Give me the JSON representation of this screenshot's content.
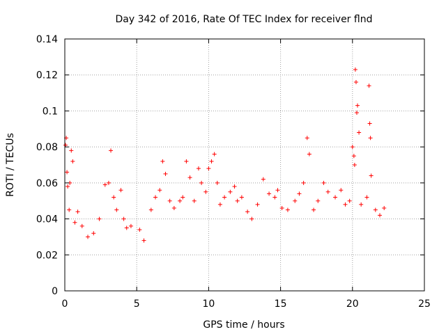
{
  "chart_data": {
    "type": "scatter",
    "title": "Day 342 of 2016, Rate Of TEC Index for receiver flnd",
    "xlabel": "GPS time / hours",
    "ylabel": "ROTI / TECUs",
    "xlim": [
      0,
      25
    ],
    "ylim": [
      0,
      0.14
    ],
    "xticks": [
      0,
      5,
      10,
      15,
      20,
      25
    ],
    "xtick_labels": [
      "0",
      "5",
      "10",
      "15",
      "20",
      "25"
    ],
    "yticks": [
      0,
      0.02,
      0.04,
      0.06,
      0.08,
      0.1,
      0.12,
      0.14
    ],
    "ytick_labels": [
      "0",
      "0.02",
      "0.04",
      "0.06",
      "0.08",
      "0.1",
      "0.12",
      "0.14"
    ],
    "grid": true,
    "marker": "plus",
    "series": [
      {
        "name": "ROTI",
        "color": "#ff0000",
        "points": [
          [
            0.05,
            0.081
          ],
          [
            0.1,
            0.085
          ],
          [
            0.15,
            0.066
          ],
          [
            0.2,
            0.058
          ],
          [
            0.3,
            0.045
          ],
          [
            0.35,
            0.06
          ],
          [
            0.45,
            0.078
          ],
          [
            0.55,
            0.072
          ],
          [
            0.7,
            0.038
          ],
          [
            0.9,
            0.044
          ],
          [
            1.2,
            0.036
          ],
          [
            1.6,
            0.03
          ],
          [
            2.0,
            0.032
          ],
          [
            2.4,
            0.04
          ],
          [
            2.8,
            0.059
          ],
          [
            3.05,
            0.06
          ],
          [
            3.2,
            0.078
          ],
          [
            3.4,
            0.052
          ],
          [
            3.6,
            0.045
          ],
          [
            3.9,
            0.056
          ],
          [
            4.1,
            0.04
          ],
          [
            4.3,
            0.035
          ],
          [
            4.6,
            0.036
          ],
          [
            5.2,
            0.034
          ],
          [
            5.5,
            0.028
          ],
          [
            6.0,
            0.045
          ],
          [
            6.3,
            0.052
          ],
          [
            6.6,
            0.056
          ],
          [
            6.8,
            0.072
          ],
          [
            7.0,
            0.065
          ],
          [
            7.3,
            0.05
          ],
          [
            7.6,
            0.046
          ],
          [
            8.0,
            0.05
          ],
          [
            8.2,
            0.052
          ],
          [
            8.45,
            0.072
          ],
          [
            8.7,
            0.063
          ],
          [
            9.0,
            0.05
          ],
          [
            9.3,
            0.068
          ],
          [
            9.5,
            0.06
          ],
          [
            9.8,
            0.055
          ],
          [
            10.0,
            0.068
          ],
          [
            10.2,
            0.072
          ],
          [
            10.4,
            0.076
          ],
          [
            10.6,
            0.06
          ],
          [
            10.8,
            0.048
          ],
          [
            11.1,
            0.052
          ],
          [
            11.5,
            0.055
          ],
          [
            11.8,
            0.058
          ],
          [
            12.0,
            0.05
          ],
          [
            12.3,
            0.052
          ],
          [
            12.7,
            0.044
          ],
          [
            13.0,
            0.04
          ],
          [
            13.4,
            0.048
          ],
          [
            13.8,
            0.062
          ],
          [
            14.2,
            0.054
          ],
          [
            14.6,
            0.052
          ],
          [
            14.8,
            0.056
          ],
          [
            15.1,
            0.046
          ],
          [
            15.5,
            0.045
          ],
          [
            16.0,
            0.05
          ],
          [
            16.3,
            0.054
          ],
          [
            16.6,
            0.06
          ],
          [
            16.85,
            0.085
          ],
          [
            17.0,
            0.076
          ],
          [
            17.3,
            0.045
          ],
          [
            17.6,
            0.05
          ],
          [
            18.0,
            0.06
          ],
          [
            18.3,
            0.055
          ],
          [
            18.8,
            0.052
          ],
          [
            19.2,
            0.056
          ],
          [
            19.5,
            0.048
          ],
          [
            19.8,
            0.05
          ],
          [
            20.0,
            0.08
          ],
          [
            20.1,
            0.075
          ],
          [
            20.15,
            0.07
          ],
          [
            20.2,
            0.123
          ],
          [
            20.25,
            0.116
          ],
          [
            20.3,
            0.099
          ],
          [
            20.35,
            0.103
          ],
          [
            20.45,
            0.088
          ],
          [
            20.6,
            0.048
          ],
          [
            21.0,
            0.052
          ],
          [
            21.15,
            0.114
          ],
          [
            21.2,
            0.093
          ],
          [
            21.25,
            0.085
          ],
          [
            21.3,
            0.064
          ],
          [
            21.6,
            0.045
          ],
          [
            21.9,
            0.042
          ],
          [
            22.2,
            0.046
          ]
        ]
      }
    ]
  }
}
